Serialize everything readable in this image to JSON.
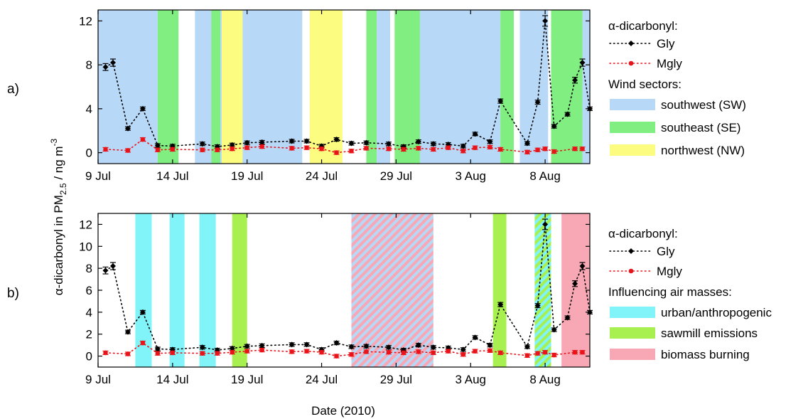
{
  "figure": {
    "x_title": "Date (2010)",
    "y_title_main": "α-dicarbonyl in PM",
    "y_title_sub": "2.5",
    "y_title_unit": " / ng m",
    "y_title_sup": "-3"
  },
  "colors": {
    "gly": "#000000",
    "mgly": "#e8141a",
    "southwest": "#b8d8f8",
    "southeast": "#80ee80",
    "northwest": "#fcfc80",
    "urban": "#80f4f8",
    "sawmill": "#a8f050",
    "biomass": "#f8a8b4"
  },
  "chart_data": [
    {
      "type": "line",
      "panel_label": "a)",
      "xlabel": "",
      "ylabel": "",
      "x_ticks": [
        "9 Jul",
        "14 Jul",
        "19 Jul",
        "24 Jul",
        "29 Jul",
        "3 Aug",
        "8 Aug"
      ],
      "xlim": [
        "2010-07-09",
        "2010-08-11"
      ],
      "ylim": [
        -1,
        13
      ],
      "y_ticks": [
        "0",
        "4",
        "8",
        "12"
      ],
      "legend": {
        "header": "α-dicarbonyl:",
        "series": [
          "Gly",
          "Mgly"
        ],
        "band_header": "Wind sectors:",
        "bands": [
          {
            "key": "southwest",
            "label": "southwest (SW)"
          },
          {
            "key": "southeast",
            "label": "southeast (SE)"
          },
          {
            "key": "northwest",
            "label": "northwest (NW)"
          }
        ]
      },
      "bands": [
        {
          "key": "southwest",
          "from": "2010-07-09",
          "to": "2010-07-13"
        },
        {
          "key": "southeast",
          "from": "2010-07-13",
          "to": "2010-07-14.4"
        },
        {
          "key": "southwest",
          "from": "2010-07-15.5",
          "to": "2010-07-16.2"
        },
        {
          "key": "southwest",
          "from": "2010-07-16.2",
          "to": "2010-07-17.3"
        },
        {
          "key": "southeast",
          "from": "2010-07-16.6",
          "to": "2010-07-17.2"
        },
        {
          "key": "northwest",
          "from": "2010-07-17.3",
          "to": "2010-07-18.7"
        },
        {
          "key": "southwest",
          "from": "2010-07-18.7",
          "to": "2010-07-22.7"
        },
        {
          "key": "northwest",
          "from": "2010-07-23.2",
          "to": "2010-07-25.4"
        },
        {
          "key": "southeast",
          "from": "2010-07-27",
          "to": "2010-07-27.7"
        },
        {
          "key": "southwest",
          "from": "2010-07-27.7",
          "to": "2010-07-28.6"
        },
        {
          "key": "southeast",
          "from": "2010-07-28.9",
          "to": "2010-07-30.6"
        },
        {
          "key": "southwest",
          "from": "2010-07-30.6",
          "to": "2010-08-05"
        },
        {
          "key": "southeast",
          "from": "2010-08-05",
          "to": "2010-08-05.9"
        },
        {
          "key": "southwest",
          "from": "2010-08-06.3",
          "to": "2010-08-08.2"
        },
        {
          "key": "southeast",
          "from": "2010-08-08.4",
          "to": "2010-08-10.5"
        },
        {
          "key": "southwest",
          "from": "2010-08-10.5",
          "to": "2010-08-11"
        }
      ],
      "series": [
        {
          "name": "Gly",
          "points": [
            {
              "x": "2010-07-09.5",
              "y": 7.8
            },
            {
              "x": "2010-07-10",
              "y": 8.2
            },
            {
              "x": "2010-07-11",
              "y": 2.2
            },
            {
              "x": "2010-07-12",
              "y": 4.0
            },
            {
              "x": "2010-07-13",
              "y": 0.65
            },
            {
              "x": "2010-07-14",
              "y": 0.6
            },
            {
              "x": "2010-07-16",
              "y": 0.8
            },
            {
              "x": "2010-07-17",
              "y": 0.55
            },
            {
              "x": "2010-07-18",
              "y": 0.7
            },
            {
              "x": "2010-07-19",
              "y": 0.9
            },
            {
              "x": "2010-07-20",
              "y": 0.95
            },
            {
              "x": "2010-07-22",
              "y": 1.05
            },
            {
              "x": "2010-07-23",
              "y": 1.05
            },
            {
              "x": "2010-07-24",
              "y": 0.6
            },
            {
              "x": "2010-07-25",
              "y": 1.2
            },
            {
              "x": "2010-07-26",
              "y": 0.85
            },
            {
              "x": "2010-07-27",
              "y": 0.9
            },
            {
              "x": "2010-07-28.5",
              "y": 0.8
            },
            {
              "x": "2010-07-29.5",
              "y": 0.55
            },
            {
              "x": "2010-07-30.5",
              "y": 1.0
            },
            {
              "x": "2010-07-31.5",
              "y": 0.8
            },
            {
              "x": "2010-08-01.5",
              "y": 0.75
            },
            {
              "x": "2010-08-02.5",
              "y": 0.6
            },
            {
              "x": "2010-08-03.3",
              "y": 1.7
            },
            {
              "x": "2010-08-04.3",
              "y": 1.0
            },
            {
              "x": "2010-08-05",
              "y": 4.7
            },
            {
              "x": "2010-08-06.8",
              "y": 0.85
            },
            {
              "x": "2010-08-07.5",
              "y": 4.6
            },
            {
              "x": "2010-08-08",
              "y": 12.0
            },
            {
              "x": "2010-08-08.6",
              "y": 2.4
            },
            {
              "x": "2010-08-09.5",
              "y": 3.5
            },
            {
              "x": "2010-08-10",
              "y": 6.6
            },
            {
              "x": "2010-08-10.5",
              "y": 8.2
            },
            {
              "x": "2010-08-11",
              "y": 4.0
            }
          ]
        },
        {
          "name": "Mgly",
          "points": [
            {
              "x": "2010-07-09.5",
              "y": 0.3
            },
            {
              "x": "2010-07-11",
              "y": 0.2
            },
            {
              "x": "2010-07-12",
              "y": 1.2
            },
            {
              "x": "2010-07-13",
              "y": 0.25
            },
            {
              "x": "2010-07-14",
              "y": 0.3
            },
            {
              "x": "2010-07-16",
              "y": 0.25
            },
            {
              "x": "2010-07-17",
              "y": 0.25
            },
            {
              "x": "2010-07-18",
              "y": 0.35
            },
            {
              "x": "2010-07-19",
              "y": 0.45
            },
            {
              "x": "2010-07-20",
              "y": 0.55
            },
            {
              "x": "2010-07-22",
              "y": 0.4
            },
            {
              "x": "2010-07-23",
              "y": 0.45
            },
            {
              "x": "2010-07-24",
              "y": 0.35
            },
            {
              "x": "2010-07-25",
              "y": 0.0
            },
            {
              "x": "2010-07-26",
              "y": 0.15
            },
            {
              "x": "2010-07-27",
              "y": 0.4
            },
            {
              "x": "2010-07-28.5",
              "y": 0.35
            },
            {
              "x": "2010-07-29.5",
              "y": 0.3
            },
            {
              "x": "2010-07-30.5",
              "y": 0.4
            },
            {
              "x": "2010-07-31.5",
              "y": 0.3
            },
            {
              "x": "2010-08-01.5",
              "y": 0.45
            },
            {
              "x": "2010-08-02.5",
              "y": 0.15
            },
            {
              "x": "2010-08-03.3",
              "y": 0.45
            },
            {
              "x": "2010-08-04.3",
              "y": 0.5
            },
            {
              "x": "2010-08-05",
              "y": 0.3
            },
            {
              "x": "2010-08-06.8",
              "y": 0.05
            },
            {
              "x": "2010-08-07.5",
              "y": 0.25
            },
            {
              "x": "2010-08-08",
              "y": 0.35
            },
            {
              "x": "2010-08-08.6",
              "y": 0.1
            },
            {
              "x": "2010-08-10",
              "y": 0.35
            },
            {
              "x": "2010-08-10.5",
              "y": 0.35
            }
          ]
        }
      ]
    },
    {
      "type": "line",
      "panel_label": "b)",
      "xlabel": "Date (2010)",
      "ylabel": "",
      "x_ticks": [
        "9 Jul",
        "14 Jul",
        "19 Jul",
        "24 Jul",
        "29 Jul",
        "3 Aug",
        "8 Aug"
      ],
      "xlim": [
        "2010-07-09",
        "2010-08-11"
      ],
      "ylim": [
        -1,
        13
      ],
      "y_ticks": [
        "0",
        "2",
        "4",
        "6",
        "8",
        "10",
        "12"
      ],
      "legend": {
        "header": "α-dicarbonyl:",
        "series": [
          "Gly",
          "Mgly"
        ],
        "band_header": "Influencing air masses:",
        "bands": [
          {
            "key": "urban",
            "label": "urban/anthropogenic"
          },
          {
            "key": "sawmill",
            "label": "sawmill emissions"
          },
          {
            "key": "biomass",
            "label": "biomass burning"
          }
        ]
      },
      "bands": [
        {
          "key": "urban",
          "from": "2010-07-11.5",
          "to": "2010-07-12.6"
        },
        {
          "key": "urban",
          "from": "2010-07-13.8",
          "to": "2010-07-14.8"
        },
        {
          "key": "urban",
          "from": "2010-07-15.8",
          "to": "2010-07-16.9"
        },
        {
          "key": "sawmill",
          "from": "2010-07-18",
          "to": "2010-07-19"
        },
        {
          "key": "urban",
          "from": "2010-07-26",
          "to": "2010-07-31.5",
          "hatch": "biomass"
        },
        {
          "key": "sawmill",
          "from": "2010-08-04.5",
          "to": "2010-08-05.4"
        },
        {
          "key": "sawmill",
          "from": "2010-08-07.3",
          "to": "2010-08-08.4",
          "hatch": "urban"
        },
        {
          "key": "biomass",
          "from": "2010-08-09.1",
          "to": "2010-08-11.1"
        }
      ],
      "series": [
        {
          "name": "Gly",
          "points": [
            {
              "x": "2010-07-09.5",
              "y": 7.8
            },
            {
              "x": "2010-07-10",
              "y": 8.2
            },
            {
              "x": "2010-07-11",
              "y": 2.2
            },
            {
              "x": "2010-07-12",
              "y": 4.0
            },
            {
              "x": "2010-07-13",
              "y": 0.65
            },
            {
              "x": "2010-07-14",
              "y": 0.6
            },
            {
              "x": "2010-07-16",
              "y": 0.8
            },
            {
              "x": "2010-07-17",
              "y": 0.55
            },
            {
              "x": "2010-07-18",
              "y": 0.7
            },
            {
              "x": "2010-07-19",
              "y": 0.9
            },
            {
              "x": "2010-07-20",
              "y": 0.95
            },
            {
              "x": "2010-07-22",
              "y": 1.05
            },
            {
              "x": "2010-07-23",
              "y": 1.05
            },
            {
              "x": "2010-07-24",
              "y": 0.6
            },
            {
              "x": "2010-07-25",
              "y": 1.2
            },
            {
              "x": "2010-07-26",
              "y": 0.85
            },
            {
              "x": "2010-07-27",
              "y": 0.9
            },
            {
              "x": "2010-07-28.5",
              "y": 0.8
            },
            {
              "x": "2010-07-29.5",
              "y": 0.55
            },
            {
              "x": "2010-07-30.5",
              "y": 1.0
            },
            {
              "x": "2010-07-31.5",
              "y": 0.8
            },
            {
              "x": "2010-08-01.5",
              "y": 0.75
            },
            {
              "x": "2010-08-02.5",
              "y": 0.6
            },
            {
              "x": "2010-08-03.3",
              "y": 1.7
            },
            {
              "x": "2010-08-04.3",
              "y": 1.0
            },
            {
              "x": "2010-08-05",
              "y": 4.7
            },
            {
              "x": "2010-08-06.8",
              "y": 0.85
            },
            {
              "x": "2010-08-07.5",
              "y": 4.6
            },
            {
              "x": "2010-08-08",
              "y": 12.0
            },
            {
              "x": "2010-08-08.6",
              "y": 2.4
            },
            {
              "x": "2010-08-09.5",
              "y": 3.5
            },
            {
              "x": "2010-08-10",
              "y": 6.6
            },
            {
              "x": "2010-08-10.5",
              "y": 8.2
            },
            {
              "x": "2010-08-11",
              "y": 4.0
            }
          ]
        },
        {
          "name": "Mgly",
          "points": [
            {
              "x": "2010-07-09.5",
              "y": 0.3
            },
            {
              "x": "2010-07-11",
              "y": 0.2
            },
            {
              "x": "2010-07-12",
              "y": 1.2
            },
            {
              "x": "2010-07-13",
              "y": 0.25
            },
            {
              "x": "2010-07-14",
              "y": 0.3
            },
            {
              "x": "2010-07-16",
              "y": 0.25
            },
            {
              "x": "2010-07-17",
              "y": 0.25
            },
            {
              "x": "2010-07-18",
              "y": 0.35
            },
            {
              "x": "2010-07-19",
              "y": 0.45
            },
            {
              "x": "2010-07-20",
              "y": 0.55
            },
            {
              "x": "2010-07-22",
              "y": 0.4
            },
            {
              "x": "2010-07-23",
              "y": 0.45
            },
            {
              "x": "2010-07-24",
              "y": 0.35
            },
            {
              "x": "2010-07-25",
              "y": 0.0
            },
            {
              "x": "2010-07-26",
              "y": 0.15
            },
            {
              "x": "2010-07-27",
              "y": 0.4
            },
            {
              "x": "2010-07-28.5",
              "y": 0.35
            },
            {
              "x": "2010-07-29.5",
              "y": 0.3
            },
            {
              "x": "2010-07-30.5",
              "y": 0.4
            },
            {
              "x": "2010-07-31.5",
              "y": 0.3
            },
            {
              "x": "2010-08-01.5",
              "y": 0.45
            },
            {
              "x": "2010-08-02.5",
              "y": 0.15
            },
            {
              "x": "2010-08-03.3",
              "y": 0.45
            },
            {
              "x": "2010-08-04.3",
              "y": 0.5
            },
            {
              "x": "2010-08-05",
              "y": 0.3
            },
            {
              "x": "2010-08-06.8",
              "y": 0.05
            },
            {
              "x": "2010-08-07.5",
              "y": 0.25
            },
            {
              "x": "2010-08-08",
              "y": 0.35
            },
            {
              "x": "2010-08-08.6",
              "y": 0.1
            },
            {
              "x": "2010-08-10",
              "y": 0.35
            },
            {
              "x": "2010-08-10.5",
              "y": 0.35
            }
          ]
        }
      ]
    }
  ]
}
